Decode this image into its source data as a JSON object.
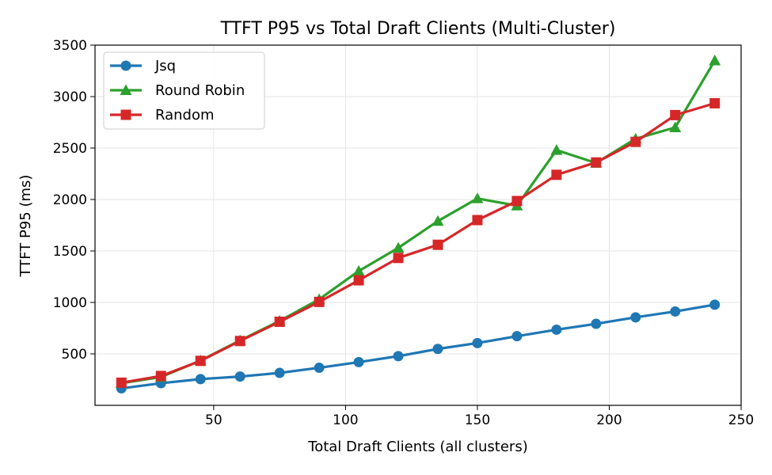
{
  "chart_data": {
    "type": "line",
    "title": "TTFT P95 vs Total Draft Clients (Multi-Cluster)",
    "xlabel": "Total Draft Clients (all clusters)",
    "ylabel": "TTFT P95 (ms)",
    "xlim": [
      5,
      250
    ],
    "ylim": [
      0,
      3500
    ],
    "xticks": [
      50,
      100,
      150,
      200,
      250
    ],
    "yticks": [
      500,
      1000,
      1500,
      2000,
      2500,
      3000,
      3500
    ],
    "grid": true,
    "legend_position": "top-left",
    "x": [
      15,
      30,
      45,
      60,
      75,
      90,
      105,
      120,
      135,
      150,
      165,
      180,
      195,
      210,
      225,
      240
    ],
    "series": [
      {
        "name": "Jsq",
        "color": "#1f77b4",
        "marker": "circle",
        "values": [
          165,
          215,
          255,
          280,
          315,
          365,
          420,
          478,
          548,
          605,
          672,
          735,
          792,
          855,
          912,
          978
        ]
      },
      {
        "name": "Round Robin",
        "color": "#2ca02c",
        "marker": "triangle",
        "values": [
          215,
          275,
          435,
          630,
          820,
          1030,
          1305,
          1530,
          1790,
          2010,
          1940,
          2480,
          2355,
          2590,
          2700,
          3350
        ]
      },
      {
        "name": "Random",
        "color": "#d62728",
        "marker": "square",
        "values": [
          220,
          285,
          432,
          625,
          812,
          1005,
          1215,
          1432,
          1560,
          1800,
          1985,
          2240,
          2360,
          2560,
          2820,
          2935
        ]
      }
    ]
  }
}
